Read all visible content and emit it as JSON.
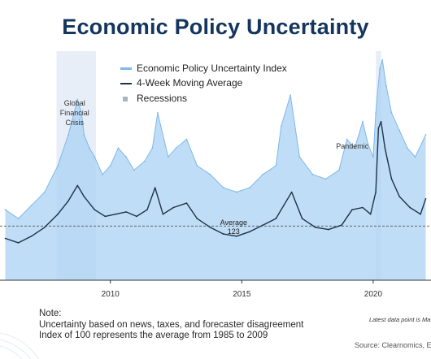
{
  "chart_data": {
    "type": "area",
    "title": "Economic Policy Uncertainty",
    "x_tick_labels": [
      "2010",
      "2015",
      "2020"
    ],
    "xlim": [
      2005.8,
      2022.2
    ],
    "ylim": [
      0,
      520
    ],
    "legend": {
      "placement": "top-center",
      "items": [
        "Economic Policy Uncertainty Index",
        "4-Week Moving Average",
        "Recessions"
      ]
    },
    "series": [
      {
        "name": "Economic Policy Uncertainty Index",
        "x": [
          2006.0,
          2006.5,
          2007.0,
          2007.5,
          2008.0,
          2008.4,
          2008.75,
          2008.9,
          2009.0,
          2009.2,
          2009.4,
          2009.7,
          2010.0,
          2010.3,
          2010.6,
          2010.9,
          2011.3,
          2011.6,
          2011.8,
          2012.2,
          2012.5,
          2012.9,
          2013.3,
          2013.8,
          2014.3,
          2014.8,
          2015.3,
          2015.8,
          2016.3,
          2016.5,
          2016.85,
          2017.2,
          2017.7,
          2018.2,
          2018.7,
          2019.0,
          2019.3,
          2019.6,
          2019.8,
          2020.0,
          2020.1,
          2020.25,
          2020.35,
          2020.5,
          2020.7,
          2021.0,
          2021.3,
          2021.6,
          2022.0
        ],
        "values": [
          160,
          140,
          170,
          200,
          260,
          330,
          410,
          380,
          330,
          300,
          280,
          240,
          260,
          300,
          280,
          250,
          270,
          300,
          380,
          280,
          300,
          320,
          260,
          240,
          210,
          200,
          210,
          240,
          260,
          350,
          420,
          280,
          240,
          230,
          250,
          320,
          300,
          360,
          310,
          280,
          380,
          480,
          500,
          440,
          380,
          340,
          300,
          280,
          330
        ]
      },
      {
        "name": "4-Week Moving Average",
        "x": [
          2006.0,
          2006.5,
          2007.0,
          2007.5,
          2008.0,
          2008.4,
          2008.75,
          2009.0,
          2009.4,
          2009.8,
          2010.2,
          2010.6,
          2011.0,
          2011.4,
          2011.7,
          2012.0,
          2012.4,
          2012.9,
          2013.3,
          2013.8,
          2014.3,
          2014.8,
          2015.3,
          2015.8,
          2016.3,
          2016.6,
          2016.9,
          2017.3,
          2017.8,
          2018.3,
          2018.8,
          2019.2,
          2019.6,
          2019.9,
          2020.1,
          2020.2,
          2020.3,
          2020.45,
          2020.7,
          2021.0,
          2021.4,
          2021.8,
          2022.0
        ],
        "values": [
          95,
          85,
          100,
          120,
          150,
          180,
          215,
          190,
          160,
          145,
          150,
          155,
          145,
          160,
          210,
          150,
          165,
          175,
          140,
          120,
          105,
          100,
          110,
          125,
          140,
          170,
          200,
          140,
          120,
          115,
          125,
          160,
          165,
          150,
          200,
          345,
          360,
          300,
          230,
          190,
          165,
          150,
          185
        ]
      }
    ],
    "recessions": [
      {
        "start": 2007.95,
        "end": 2009.45
      },
      {
        "start": 2020.1,
        "end": 2020.3
      }
    ],
    "reference_line": {
      "value": 123,
      "label_lines": [
        "Average",
        "123"
      ]
    },
    "annotations": [
      {
        "lines": [
          "Global",
          "Financial",
          "Crisis"
        ],
        "x": 2008.7
      },
      {
        "lines": [
          "Pandemic"
        ],
        "x": 2019.7
      }
    ]
  },
  "notes": {
    "heading": "Note:",
    "line1": "Uncertainty based on news, taxes, and forecaster disagreement",
    "line2": "Index of 100 represents the average from 1985 to 2009"
  },
  "latest_note": "Latest data point is Ma",
  "source": "Source: Clearnomics, E",
  "colors": {
    "title": "#13355e",
    "index_area": "#a9d2f3",
    "index_line": "#7db8ea",
    "moving_average": "#1e3247",
    "recession": "#e8eef8",
    "recession_legend": "#a8b4c2",
    "axis": "#333333"
  }
}
